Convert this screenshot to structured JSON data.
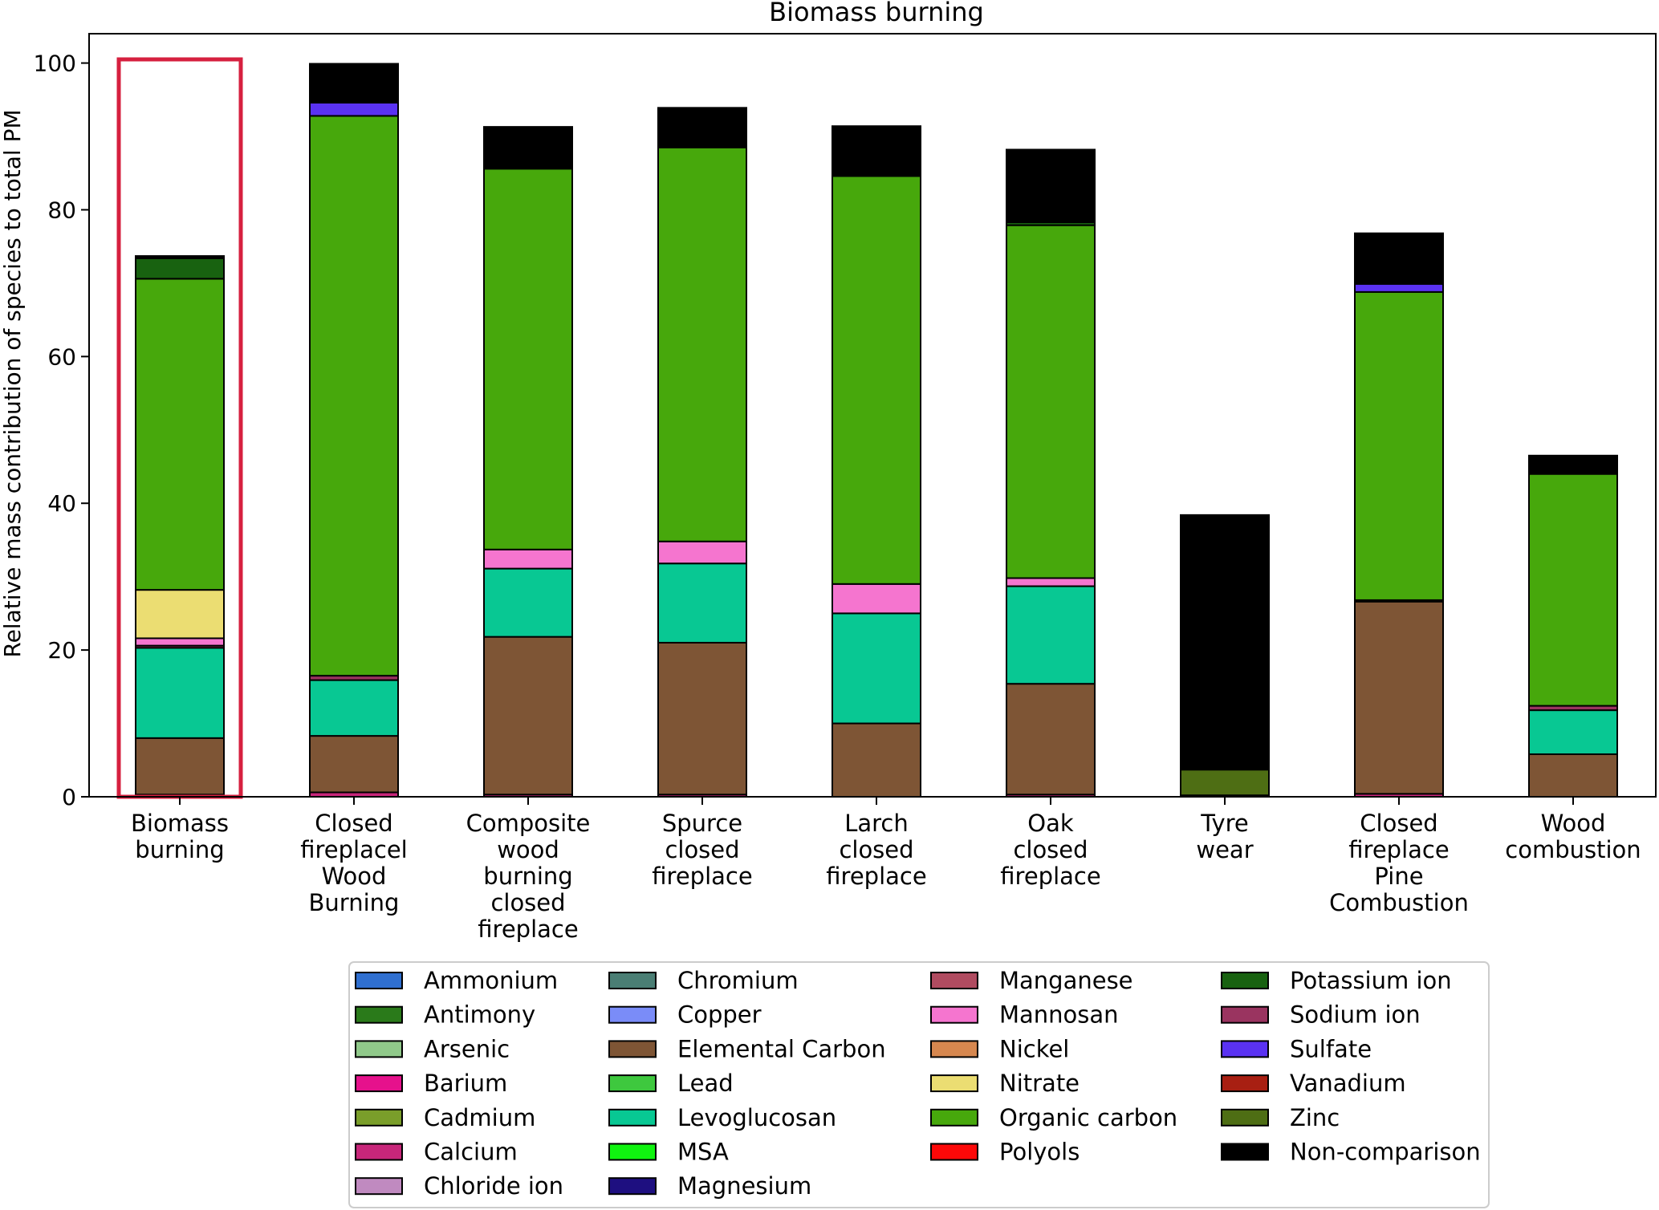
{
  "chart_data": {
    "type": "bar",
    "stacked": true,
    "title": "Biomass burning",
    "xlabel": "",
    "ylabel": "Relative mass contribution of species to total PM",
    "ylim": [
      0,
      104
    ],
    "yticks": [
      0,
      20,
      40,
      60,
      80,
      100
    ],
    "grid": false,
    "legend_position": "bottom",
    "categories": [
      {
        "label": [
          "Biomass",
          "burning"
        ],
        "highlighted": true
      },
      {
        "label": [
          "Closed",
          "fireplacel",
          "Wood",
          "Burning"
        ]
      },
      {
        "label": [
          "Composite",
          "wood",
          "burning",
          "closed",
          "fireplace"
        ]
      },
      {
        "label": [
          "Spurce",
          "closed",
          "fireplace"
        ]
      },
      {
        "label": [
          "Larch",
          "closed",
          "fireplace"
        ]
      },
      {
        "label": [
          "Oak",
          "closed",
          "fireplace"
        ]
      },
      {
        "label": [
          "Tyre",
          "wear"
        ]
      },
      {
        "label": [
          "Closed",
          "fireplace",
          "Pine",
          "Combustion"
        ]
      },
      {
        "label": [
          "Wood",
          "combustion"
        ]
      }
    ],
    "highlight_color": "#d6203f",
    "species": [
      {
        "name": "Ammonium",
        "color": "#2f6fd0"
      },
      {
        "name": "Antimony",
        "color": "#2a7a1a"
      },
      {
        "name": "Arsenic",
        "color": "#90c98a"
      },
      {
        "name": "Barium",
        "color": "#e6118c"
      },
      {
        "name": "Cadmium",
        "color": "#7a9e2a"
      },
      {
        "name": "Calcium",
        "color": "#c8267a"
      },
      {
        "name": "Chloride ion",
        "color": "#c08ac0"
      },
      {
        "name": "Chromium",
        "color": "#4a7e74"
      },
      {
        "name": "Copper",
        "color": "#7a8cf8"
      },
      {
        "name": "Elemental Carbon",
        "color": "#7e5535"
      },
      {
        "name": "Lead",
        "color": "#3ec83e"
      },
      {
        "name": "Levoglucosan",
        "color": "#08c893"
      },
      {
        "name": "MSA",
        "color": "#10f410"
      },
      {
        "name": "Magnesium",
        "color": "#1e0f80"
      },
      {
        "name": "Manganese",
        "color": "#b04b60"
      },
      {
        "name": "Mannosan",
        "color": "#f575cf"
      },
      {
        "name": "Nickel",
        "color": "#d6874f"
      },
      {
        "name": "Nitrate",
        "color": "#ebdd72"
      },
      {
        "name": "Organic carbon",
        "color": "#47a80c"
      },
      {
        "name": "Polyols",
        "color": "#fc0808"
      },
      {
        "name": "Potassium ion",
        "color": "#186210"
      },
      {
        "name": "Sodium ion",
        "color": "#9a3460"
      },
      {
        "name": "Sulfate",
        "color": "#5a32f2"
      },
      {
        "name": "Vanadium",
        "color": "#a81f12"
      },
      {
        "name": "Zinc",
        "color": "#4e6e14"
      },
      {
        "name": "Non-comparison",
        "color": "#000000"
      }
    ],
    "stacks": [
      [
        [
          "Calcium",
          0.3
        ],
        [
          "Elemental Carbon",
          7.7
        ],
        [
          "Levoglucosan",
          12.3
        ],
        [
          "Sodium ion",
          0.3
        ],
        [
          "Mannosan",
          1.0
        ],
        [
          "Nitrate",
          6.6
        ],
        [
          "Organic carbon",
          42.4
        ],
        [
          "Potassium ion",
          2.8
        ],
        [
          "Non-comparison",
          0.3
        ]
      ],
      [
        [
          "Calcium",
          0.6
        ],
        [
          "Elemental Carbon",
          7.7
        ],
        [
          "Levoglucosan",
          7.6
        ],
        [
          "Sodium ion",
          0.6
        ],
        [
          "Organic carbon",
          76.3
        ],
        [
          "Sulfate",
          1.8
        ],
        [
          "Non-comparison",
          5.3
        ]
      ],
      [
        [
          "Calcium",
          0.3
        ],
        [
          "Elemental Carbon",
          21.5
        ],
        [
          "Levoglucosan",
          9.3
        ],
        [
          "Mannosan",
          2.6
        ],
        [
          "Organic carbon",
          51.9
        ],
        [
          "Non-comparison",
          5.7
        ]
      ],
      [
        [
          "Calcium",
          0.3
        ],
        [
          "Elemental Carbon",
          20.7
        ],
        [
          "Levoglucosan",
          10.8
        ],
        [
          "Mannosan",
          3.0
        ],
        [
          "Organic carbon",
          53.7
        ],
        [
          "Non-comparison",
          5.4
        ]
      ],
      [
        [
          "Elemental Carbon",
          10.0
        ],
        [
          "Levoglucosan",
          15.0
        ],
        [
          "Mannosan",
          4.0
        ],
        [
          "Organic carbon",
          55.6
        ],
        [
          "Non-comparison",
          6.8
        ]
      ],
      [
        [
          "Calcium",
          0.3
        ],
        [
          "Elemental Carbon",
          15.1
        ],
        [
          "Levoglucosan",
          13.3
        ],
        [
          "Mannosan",
          1.1
        ],
        [
          "Organic carbon",
          48.1
        ],
        [
          "Potassium ion",
          0.4
        ],
        [
          "Non-comparison",
          9.9
        ]
      ],
      [
        [
          "Calcium",
          0.2
        ],
        [
          "Zinc",
          3.5
        ],
        [
          "Non-comparison",
          34.7
        ]
      ],
      [
        [
          "Calcium",
          0.4
        ],
        [
          "Elemental Carbon",
          26.2
        ],
        [
          "Sodium ion",
          0.2
        ],
        [
          "Organic carbon",
          42.0
        ],
        [
          "Sulfate",
          1.1
        ],
        [
          "Non-comparison",
          6.9
        ]
      ],
      [
        [
          "Elemental Carbon",
          5.8
        ],
        [
          "Levoglucosan",
          6.0
        ],
        [
          "Sodium ion",
          0.6
        ],
        [
          "Organic carbon",
          31.6
        ],
        [
          "Non-comparison",
          2.5
        ]
      ]
    ]
  }
}
